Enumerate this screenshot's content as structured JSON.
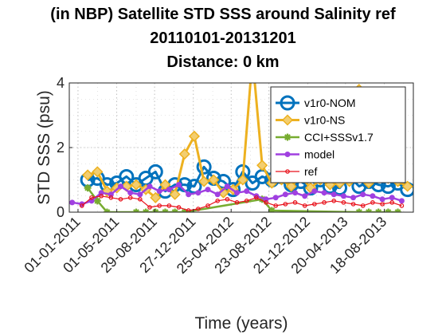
{
  "chart_data": {
    "type": "line",
    "title": [
      "(in NBP) Satellite STD SSS around Salinity ref",
      "20110101-20131201",
      "Distance: 0 km"
    ],
    "xlabel": "Time (years)",
    "ylabel": "STD SSS (psu)",
    "ylim": [
      0,
      4
    ],
    "yticks": [
      0,
      2,
      4
    ],
    "xticks": [
      "01-01-2011",
      "01-05-2011",
      "29-08-2011",
      "27-12-2011",
      "25-04-2012",
      "23-08-2012",
      "21-12-2012",
      "20-04-2013",
      "18-08-2013"
    ],
    "x_unit": "months since 01-01-2011",
    "xlim": [
      -0.9,
      34.6
    ],
    "xtick_months": [
      0,
      4,
      7.9,
      11.9,
      15.8,
      19.7,
      23.7,
      27.6,
      31.6
    ],
    "grid": "dotted",
    "legend_position": "top-right",
    "series": [
      {
        "name": "v1r0-NOM",
        "color": "#0072BD",
        "marker": "circle",
        "x": [
          1,
          2,
          3,
          4,
          5,
          6,
          7,
          8,
          9,
          10,
          11,
          12,
          13,
          14,
          15,
          16,
          17,
          18,
          19,
          20,
          21,
          22,
          23,
          24,
          25,
          26,
          27,
          28,
          29,
          30,
          31,
          32,
          33,
          34
        ],
        "y": [
          1.0,
          1.05,
          0.85,
          0.9,
          1.1,
          0.85,
          1.05,
          1.25,
          0.65,
          0.85,
          0.85,
          0.8,
          1.4,
          1.05,
          0.95,
          0.7,
          1.25,
          0.9,
          1.1,
          1.0,
          1.1,
          0.85,
          0.95,
          0.75,
          1.0,
          0.8,
          0.75,
          1.1,
          0.8,
          0.95,
          0.85,
          0.8,
          0.9,
          0.7
        ]
      },
      {
        "name": "v1r0-NS",
        "color": "#EDB120",
        "marker": "diamond",
        "x": [
          1,
          2,
          3,
          4,
          5,
          6,
          7,
          8,
          9,
          10,
          11,
          12,
          13,
          14,
          15,
          16,
          17,
          18,
          19,
          20,
          21,
          22,
          23,
          24,
          25,
          26,
          27,
          28,
          29,
          30,
          31,
          32,
          33,
          34
        ],
        "y": [
          1.15,
          1.25,
          0.65,
          0.75,
          0.8,
          0.85,
          0.7,
          0.45,
          0.85,
          0.55,
          1.8,
          2.35,
          0.95,
          1.0,
          0.6,
          0.7,
          1.0,
          4.8,
          1.45,
          0.9,
          1.0,
          0.8,
          1.1,
          0.75,
          1.0,
          0.85,
          0.9,
          0.95,
          3.8,
          0.9,
          1.1,
          1.05,
          0.95,
          0.8
        ]
      },
      {
        "name": "CCI+SSSv1.7",
        "color": "#77AC30",
        "marker": "star",
        "x": [
          1,
          2,
          3,
          6,
          7,
          8,
          9,
          10,
          11,
          19,
          20,
          29,
          30,
          31,
          32,
          33
        ],
        "y": [
          0.75,
          0.35,
          0.0,
          0.0,
          0.0,
          0.0,
          0.0,
          0.0,
          0.0,
          0.4,
          0.05,
          0.0,
          0.0,
          0.0,
          0.0,
          0.0
        ]
      },
      {
        "name": "model",
        "color": "#A040E0",
        "marker": "dot",
        "x": [
          -0.6,
          0.4,
          1.4,
          2.4,
          3.4,
          4.4,
          5.4,
          6.4,
          7.4,
          8.4,
          9.4,
          10.4,
          11.4,
          12.4,
          13.4,
          14.4,
          15.4,
          16.4,
          17.4,
          18.4,
          19.4,
          20.4,
          21.4,
          22.4,
          23.4,
          24.4,
          25.4,
          26.4,
          27.4,
          28.4,
          29.4,
          30.4,
          31.4,
          32.4,
          33.4
        ],
        "y": [
          0.3,
          0.25,
          0.35,
          0.6,
          0.55,
          0.8,
          0.6,
          0.55,
          0.8,
          0.65,
          0.7,
          0.85,
          0.55,
          0.6,
          0.7,
          0.55,
          0.8,
          0.6,
          0.65,
          0.5,
          0.4,
          0.45,
          0.55,
          0.6,
          0.5,
          0.65,
          0.6,
          0.55,
          0.5,
          0.45,
          0.55,
          0.5,
          0.4,
          0.45,
          0.35
        ]
      },
      {
        "name": "ref",
        "color": "#E8101A",
        "marker": "small-circle",
        "x": [
          0.4,
          1.4,
          2.4,
          3.4,
          4.4,
          5.4,
          6.4,
          7.4,
          8.4,
          9.4,
          10.4,
          11.4,
          12.4,
          13.4,
          14.4,
          15.4,
          16.4,
          17.4,
          18.4,
          19.4,
          20.4,
          21.4,
          22.4,
          23.4,
          24.4,
          25.4,
          26.4,
          27.4,
          28.4,
          29.4,
          30.4,
          31.4,
          32.4,
          33.4
        ],
        "y": [
          0.2,
          0.45,
          0.5,
          0.45,
          0.4,
          0.45,
          0.4,
          0.15,
          0.2,
          0.2,
          0.15,
          0.05,
          0.1,
          0.2,
          0.35,
          0.4,
          0.3,
          0.35,
          0.45,
          0.3,
          0.2,
          0.25,
          0.3,
          0.2,
          0.25,
          0.3,
          0.35,
          0.3,
          0.25,
          0.2,
          0.3,
          0.25,
          0.3,
          0.2
        ]
      }
    ]
  }
}
